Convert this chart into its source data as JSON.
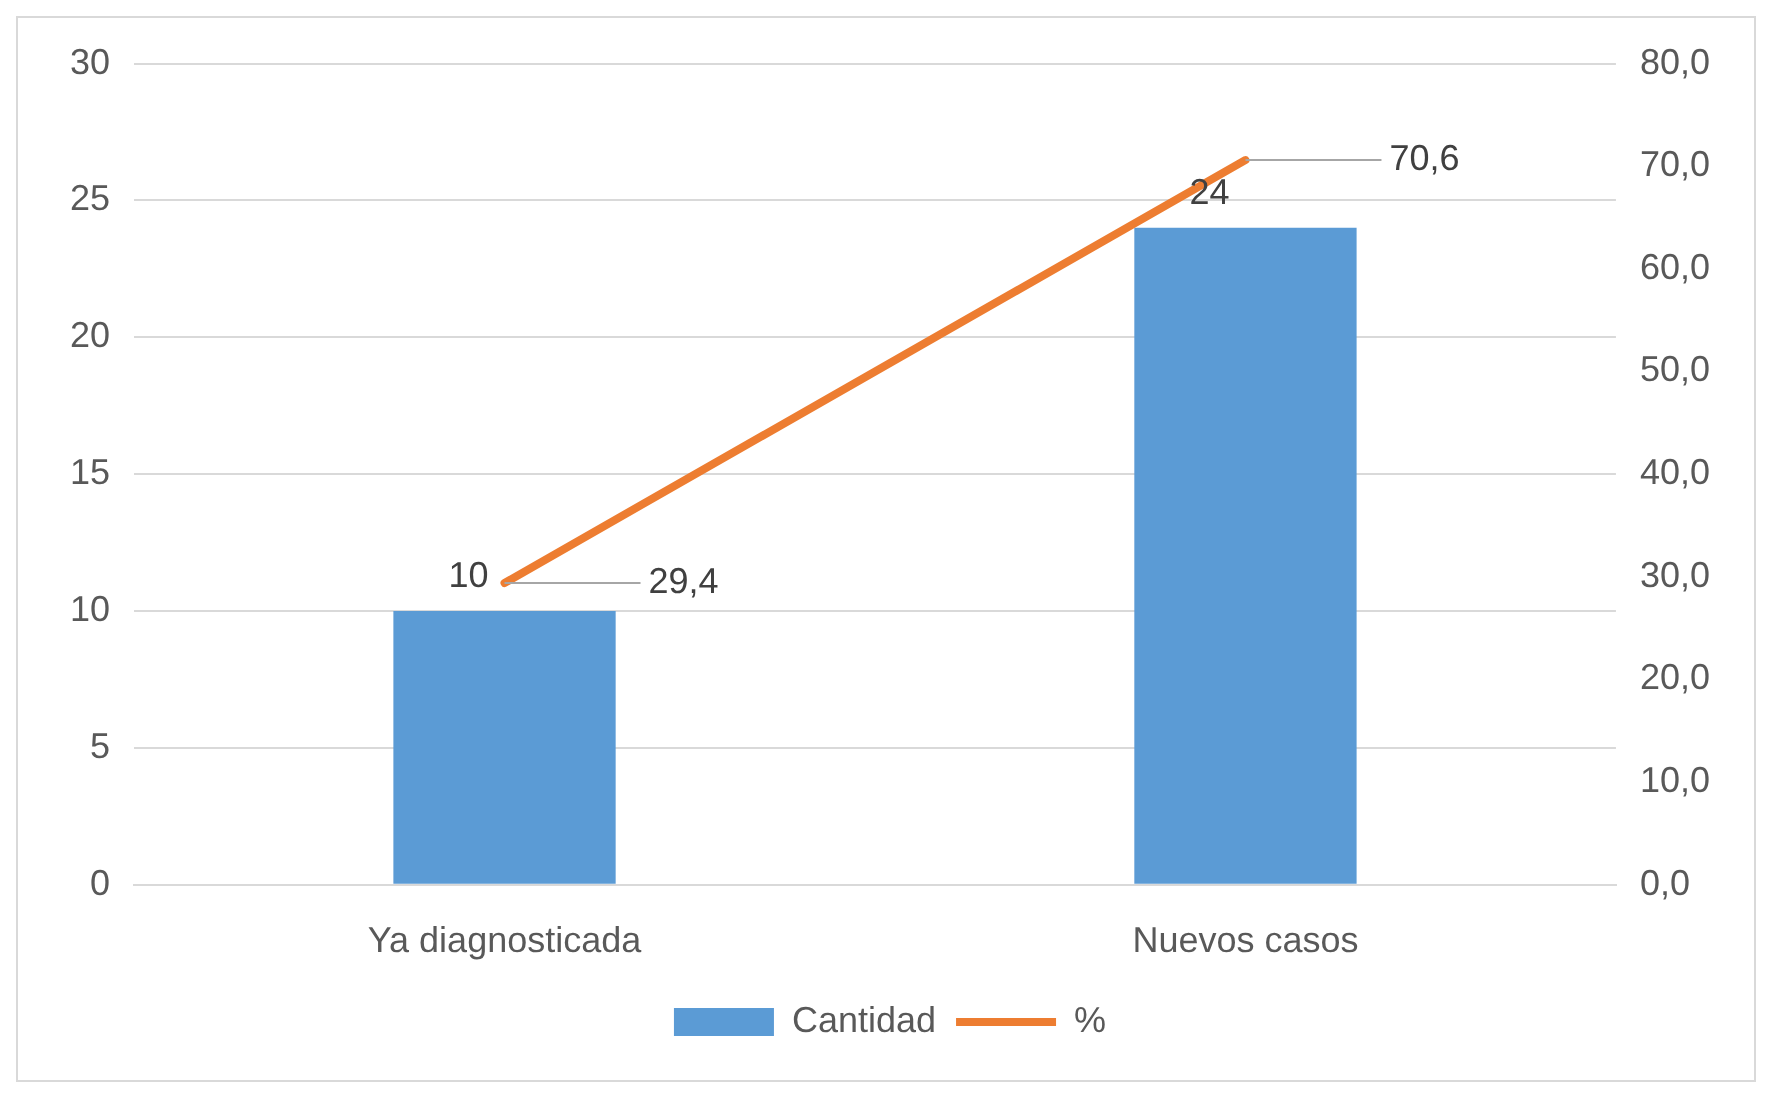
{
  "chart_data": {
    "type": "bar",
    "categories": [
      "Ya diagnosticada",
      "Nuevos casos"
    ],
    "series": [
      {
        "name": "Cantidad",
        "color": "#5b9bd5",
        "values": [
          10,
          24
        ],
        "value_labels": [
          "10",
          "24"
        ]
      },
      {
        "name": "%",
        "type": "line",
        "axis": "y2",
        "color": "#ed7d31",
        "values": [
          29.4,
          70.6
        ],
        "value_labels": [
          "29,4",
          "70,6"
        ]
      }
    ],
    "ylim": [
      0,
      30
    ],
    "yticks": [
      0,
      5,
      10,
      15,
      20,
      25,
      30
    ],
    "y2lim": [
      0,
      80
    ],
    "y2ticks": [
      {
        "value": 0,
        "label": "0,0"
      },
      {
        "value": 10,
        "label": "10,0"
      },
      {
        "value": 20,
        "label": "20,0"
      },
      {
        "value": 30,
        "label": "30,0"
      },
      {
        "value": 40,
        "label": "40,0"
      },
      {
        "value": 50,
        "label": "50,0"
      },
      {
        "value": 60,
        "label": "60,0"
      },
      {
        "value": 70,
        "label": "70,0"
      },
      {
        "value": 80,
        "label": "80,0"
      }
    ],
    "grid": "y",
    "legend": "bottom",
    "marker": "none",
    "line_style": "solid"
  }
}
